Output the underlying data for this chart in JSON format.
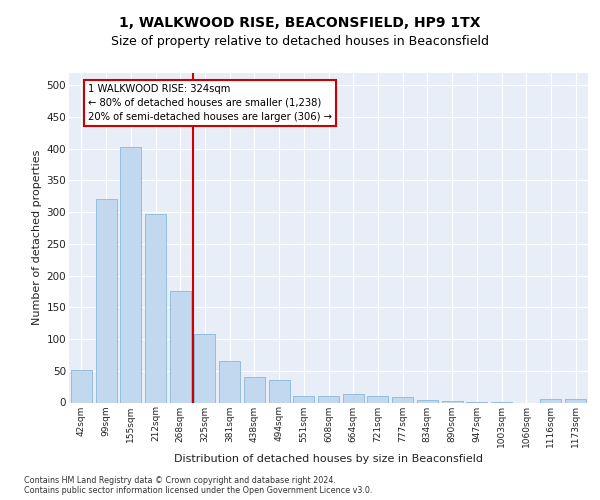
{
  "title1": "1, WALKWOOD RISE, BEACONSFIELD, HP9 1TX",
  "title2": "Size of property relative to detached houses in Beaconsfield",
  "xlabel": "Distribution of detached houses by size in Beaconsfield",
  "ylabel": "Number of detached properties",
  "footnote": "Contains HM Land Registry data © Crown copyright and database right 2024.\nContains public sector information licensed under the Open Government Licence v3.0.",
  "categories": [
    "42sqm",
    "99sqm",
    "155sqm",
    "212sqm",
    "268sqm",
    "325sqm",
    "381sqm",
    "438sqm",
    "494sqm",
    "551sqm",
    "608sqm",
    "664sqm",
    "721sqm",
    "777sqm",
    "834sqm",
    "890sqm",
    "947sqm",
    "1003sqm",
    "1060sqm",
    "1116sqm",
    "1173sqm"
  ],
  "values": [
    52,
    320,
    402,
    297,
    176,
    108,
    65,
    40,
    36,
    11,
    10,
    14,
    10,
    9,
    4,
    2,
    1,
    1,
    0,
    5,
    6
  ],
  "bar_color": "#c2d8ef",
  "bar_edge_color": "#7aafd4",
  "vline_color": "#cc0000",
  "annotation_text": "1 WALKWOOD RISE: 324sqm\n← 80% of detached houses are smaller (1,238)\n20% of semi-detached houses are larger (306) →",
  "annotation_box_edgecolor": "#cc0000",
  "ylim": [
    0,
    520
  ],
  "yticks": [
    0,
    50,
    100,
    150,
    200,
    250,
    300,
    350,
    400,
    450,
    500
  ],
  "plot_bg_color": "#e8eef8",
  "grid_color": "#ffffff",
  "title1_fontsize": 10,
  "title2_fontsize": 9
}
